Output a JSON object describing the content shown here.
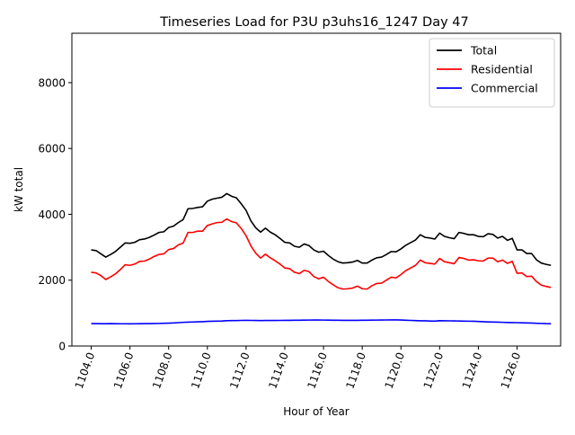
{
  "chart_data": {
    "type": "line",
    "title": "Timeseries Load for P3U p3uhs16_1247  Day 47",
    "xlabel": "Hour of Year",
    "ylabel": "kW total",
    "xlim": [
      1103.0,
      1128.25
    ],
    "ylim": [
      0,
      9500
    ],
    "xticks": [
      1104,
      1106,
      1108,
      1110,
      1112,
      1114,
      1116,
      1118,
      1120,
      1122,
      1124,
      1126
    ],
    "xtick_labels": [
      "1104.0",
      "1106.0",
      "1108.0",
      "1110.0",
      "1112.0",
      "1114.0",
      "1116.0",
      "1118.0",
      "1120.0",
      "1122.0",
      "1124.0",
      "1126.0"
    ],
    "yticks": [
      0,
      2000,
      4000,
      6000,
      8000
    ],
    "ytick_labels": [
      "0",
      "2000",
      "4000",
      "6000",
      "8000"
    ],
    "grid": false,
    "legend_position": "top-right",
    "x_start": 1104.0,
    "x_step": 0.25,
    "series": [
      {
        "name": "Total",
        "color": "#000000",
        "values": [
          2920,
          2900,
          2800,
          2700,
          2780,
          2870,
          3000,
          3130,
          3120,
          3150,
          3230,
          3250,
          3300,
          3370,
          3450,
          3470,
          3600,
          3640,
          3750,
          3840,
          4170,
          4180,
          4210,
          4230,
          4400,
          4460,
          4490,
          4520,
          4630,
          4550,
          4500,
          4320,
          4120,
          3800,
          3590,
          3460,
          3580,
          3460,
          3380,
          3270,
          3150,
          3130,
          3030,
          3000,
          3100,
          3050,
          2920,
          2850,
          2880,
          2750,
          2640,
          2560,
          2520,
          2530,
          2550,
          2600,
          2520,
          2520,
          2610,
          2680,
          2700,
          2780,
          2870,
          2860,
          2950,
          3060,
          3140,
          3220,
          3380,
          3300,
          3280,
          3250,
          3430,
          3330,
          3290,
          3260,
          3450,
          3420,
          3380,
          3380,
          3330,
          3320,
          3410,
          3390,
          3280,
          3330,
          3210,
          3270,
          2920,
          2920,
          2810,
          2810,
          2620,
          2520,
          2480,
          2450
        ]
      },
      {
        "name": "Residential",
        "color": "#ff0000",
        "values": [
          2240,
          2220,
          2140,
          2020,
          2100,
          2190,
          2320,
          2470,
          2450,
          2490,
          2570,
          2580,
          2640,
          2720,
          2780,
          2800,
          2930,
          2960,
          3070,
          3130,
          3450,
          3450,
          3490,
          3490,
          3660,
          3710,
          3750,
          3760,
          3860,
          3780,
          3740,
          3570,
          3350,
          3040,
          2820,
          2670,
          2790,
          2680,
          2590,
          2490,
          2370,
          2350,
          2240,
          2200,
          2300,
          2260,
          2110,
          2040,
          2090,
          1960,
          1860,
          1770,
          1730,
          1740,
          1760,
          1820,
          1740,
          1730,
          1830,
          1900,
          1910,
          2000,
          2090,
          2070,
          2170,
          2290,
          2370,
          2450,
          2610,
          2530,
          2510,
          2490,
          2660,
          2560,
          2530,
          2500,
          2690,
          2660,
          2610,
          2620,
          2590,
          2580,
          2670,
          2670,
          2560,
          2610,
          2510,
          2570,
          2210,
          2220,
          2110,
          2120,
          1960,
          1850,
          1810,
          1780
        ]
      },
      {
        "name": "Commercial",
        "color": "#0000ff",
        "values": [
          680,
          680,
          678,
          678,
          680,
          678,
          676,
          676,
          674,
          676,
          678,
          680,
          682,
          684,
          686,
          690,
          695,
          700,
          710,
          720,
          725,
          730,
          735,
          740,
          748,
          752,
          756,
          760,
          770,
          772,
          774,
          778,
          780,
          778,
          775,
          774,
          775,
          776,
          777,
          778,
          779,
          780,
          782,
          784,
          786,
          788,
          790,
          790,
          788,
          786,
          784,
          782,
          780,
          780,
          780,
          780,
          782,
          784,
          786,
          788,
          790,
          792,
          794,
          794,
          790,
          784,
          778,
          772,
          766,
          766,
          760,
          756,
          770,
          766,
          764,
          762,
          760,
          757,
          754,
          752,
          745,
          738,
          732,
          728,
          724,
          720,
          716,
          712,
          710,
          706,
          702,
          698,
          690,
          686,
          680,
          678
        ]
      }
    ]
  }
}
